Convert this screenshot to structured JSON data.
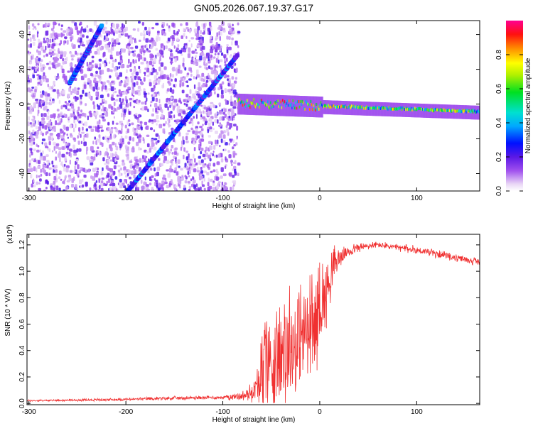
{
  "figure": {
    "title": "GN05.2026.067.19.37.G17"
  },
  "chart_data": [
    {
      "type": "heatmap",
      "xlabel": "Height of straight line (km)",
      "ylabel": "Frequency (Hz)",
      "xlim": [
        -302,
        165
      ],
      "ylim": [
        -50,
        48
      ],
      "xticks": [
        "-300",
        "-200",
        "-100",
        "0",
        "100"
      ],
      "xtick_values": [
        -300,
        -200,
        -100,
        0,
        100
      ],
      "yticks": [
        "-40",
        "-20",
        "0",
        "20",
        "40"
      ],
      "ytick_values": [
        -40,
        -20,
        0,
        20,
        40
      ],
      "colorbar": {
        "label": "Normalized spectral amplitude",
        "range": [
          0,
          1
        ],
        "ticks": [
          "0.0",
          "0.2",
          "0.4",
          "0.6",
          "0.8"
        ],
        "tick_values": [
          0,
          0.2,
          0.4,
          0.6,
          0.8
        ],
        "colormap": "rainbow (white to purple to blue to cyan to green to yellow to red to magenta)"
      },
      "features": [
        {
          "kind": "diagonal streak",
          "from": [
            -258,
            12
          ],
          "to": [
            -225,
            45
          ],
          "amplitude": 0.25
        },
        {
          "kind": "diagonal streak",
          "from": [
            -198,
            -50
          ],
          "to": [
            -85,
            28
          ],
          "amplitude": 0.25
        },
        {
          "kind": "horizontal band",
          "from": [
            -85,
            0
          ],
          "to": [
            165,
            -5
          ],
          "amplitude_range": [
            0.3,
            0.95
          ]
        }
      ],
      "noise_region_x": [
        -302,
        -85
      ]
    },
    {
      "type": "line",
      "xlabel": "Height of straight line (km)",
      "ylabel": "SNR (10 * V/V)",
      "y_multiplier": "(x10",
      "y_multiplier_exponent": "4",
      "y_multiplier_close": ")",
      "xlim": [
        -302,
        165
      ],
      "ylim": [
        -0.01,
        1.28
      ],
      "xticks": [
        "-300",
        "-200",
        "-100",
        "0",
        "100"
      ],
      "xtick_values": [
        -300,
        -200,
        -100,
        0,
        100
      ],
      "yticks": [
        "0.0",
        "0.2",
        "0.4",
        "0.6",
        "0.8",
        "1.0",
        "1.2"
      ],
      "ytick_values": [
        0,
        0.2,
        0.4,
        0.6,
        0.8,
        1.0,
        1.2
      ],
      "series": [
        {
          "color": "#f03030",
          "envelope_x": [
            -302,
            -250,
            -200,
            -150,
            -100,
            -75,
            -65,
            -60,
            -55,
            -50,
            -45,
            -40,
            -35,
            -30,
            -25,
            -20,
            -15,
            -10,
            -5,
            0,
            5,
            10,
            15,
            20,
            25,
            30,
            40,
            50,
            60,
            70,
            80,
            90,
            100,
            110,
            120,
            130,
            140,
            150,
            165
          ],
          "envelope_mean": [
            0.02,
            0.025,
            0.03,
            0.04,
            0.045,
            0.06,
            0.12,
            0.3,
            0.35,
            0.32,
            0.3,
            0.4,
            0.35,
            0.45,
            0.42,
            0.5,
            0.55,
            0.52,
            0.6,
            0.75,
            0.8,
            0.95,
            1.05,
            1.1,
            1.13,
            1.15,
            1.18,
            1.19,
            1.2,
            1.19,
            1.18,
            1.17,
            1.16,
            1.15,
            1.13,
            1.12,
            1.1,
            1.09,
            1.07
          ],
          "envelope_spread": [
            0.005,
            0.006,
            0.008,
            0.01,
            0.01,
            0.03,
            0.08,
            0.25,
            0.3,
            0.28,
            0.28,
            0.32,
            0.3,
            0.32,
            0.3,
            0.33,
            0.3,
            0.3,
            0.28,
            0.25,
            0.2,
            0.15,
            0.1,
            0.06,
            0.04,
            0.03,
            0.025,
            0.02,
            0.02,
            0.02,
            0.02,
            0.02,
            0.025,
            0.02,
            0.02,
            0.02,
            0.02,
            0.02,
            0.02
          ]
        }
      ]
    }
  ]
}
